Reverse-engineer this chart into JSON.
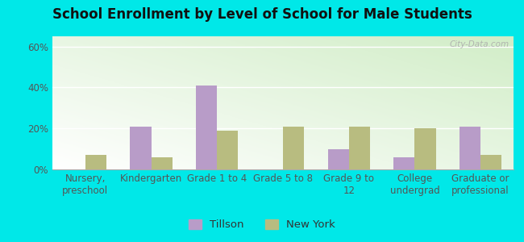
{
  "title": "School Enrollment by Level of School for Male Students",
  "categories": [
    "Nursery,\npreschool",
    "Kindergarten",
    "Grade 1 to 4",
    "Grade 5 to 8",
    "Grade 9 to\n12",
    "College\nundergrad",
    "Graduate or\nprofessional"
  ],
  "tillson": [
    0,
    21,
    41,
    0,
    10,
    6,
    21
  ],
  "new_york": [
    7,
    6,
    19,
    21,
    21,
    20,
    7
  ],
  "tillson_color": "#b89cc8",
  "new_york_color": "#b8bc80",
  "background_outer": "#00e8e8",
  "ylim": [
    0,
    65
  ],
  "yticks": [
    0,
    20,
    40,
    60
  ],
  "ytick_labels": [
    "0%",
    "20%",
    "40%",
    "60%"
  ],
  "bar_width": 0.32,
  "title_fontsize": 12,
  "tick_fontsize": 8.5,
  "legend_fontsize": 9.5,
  "watermark": "City-Data.com"
}
